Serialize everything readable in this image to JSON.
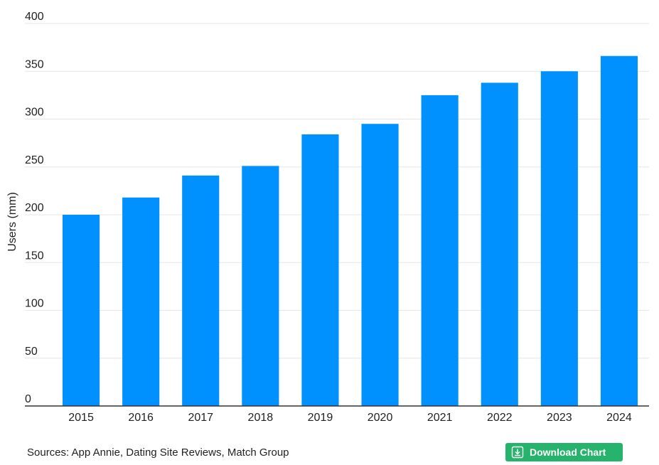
{
  "chart_data": {
    "type": "bar",
    "categories": [
      "2015",
      "2016",
      "2017",
      "2018",
      "2019",
      "2020",
      "2021",
      "2022",
      "2023",
      "2024"
    ],
    "values": [
      200,
      218,
      241,
      251,
      284,
      295,
      325,
      338,
      350,
      366
    ],
    "ylabel": "Users (mm)",
    "xlabel": "",
    "ylim": [
      0,
      400
    ],
    "yticks": [
      0,
      50,
      100,
      150,
      200,
      250,
      300,
      350,
      400
    ],
    "grid": true,
    "bar_color": "#0091ff"
  },
  "footer": {
    "sources": "Sources: App Annie, Dating Site Reviews, Match Group",
    "download_label": "Download Chart",
    "download_color": "#26b36b"
  }
}
